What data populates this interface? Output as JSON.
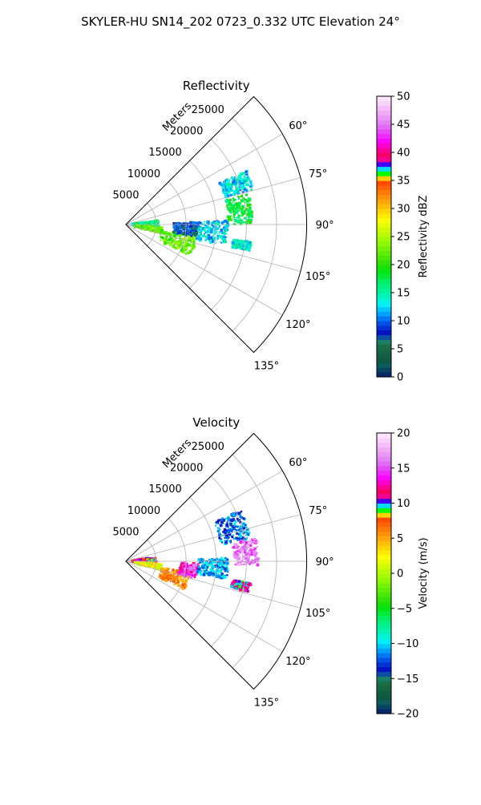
{
  "title": "SKYLER-HU  SN14_202  0723_0.332 UTC Elevation 24°",
  "chart_data": [
    {
      "type": "heatmap",
      "title": "Reflectivity",
      "projection": "polar-sector",
      "theta_range_deg": [
        45,
        135
      ],
      "theta_ticks": [
        60,
        75,
        90,
        105,
        120,
        135
      ],
      "theta_tick_labels": [
        "60°",
        "75°",
        "90°",
        "105°",
        "120°",
        "135°"
      ],
      "r_range": [
        0,
        30000
      ],
      "r_ticks": [
        5000,
        10000,
        15000,
        20000,
        25000
      ],
      "r_tick_labels": [
        "5000",
        "10000",
        "15000",
        "20000",
        "25000"
      ],
      "r_label": "Meters",
      "grid": true,
      "colorbar": {
        "label": "Reflectivity dBZ",
        "range": [
          0,
          50
        ],
        "ticks": [
          0,
          5,
          10,
          15,
          20,
          25,
          30,
          35,
          40,
          45,
          50
        ],
        "tick_labels": [
          "0",
          "5",
          "10",
          "15",
          "20",
          "25",
          "30",
          "35",
          "40",
          "45",
          "50"
        ]
      },
      "echo_regions": [
        {
          "r": [
            1000,
            5500
          ],
          "theta": [
            83,
            95
          ],
          "value": 16
        },
        {
          "r": [
            1500,
            6000
          ],
          "theta": [
            94,
            104
          ],
          "value": 22
        },
        {
          "r": [
            6000,
            12000
          ],
          "theta": [
            98,
            116
          ],
          "value": 22
        },
        {
          "r": [
            8000,
            12000
          ],
          "theta": [
            88,
            100
          ],
          "value": 8
        },
        {
          "r": [
            12000,
            17000
          ],
          "theta": [
            88,
            102
          ],
          "value": 13
        },
        {
          "r": [
            17000,
            22000
          ],
          "theta": [
            66,
            75
          ],
          "value": 13
        },
        {
          "r": [
            17000,
            21000
          ],
          "theta": [
            76,
            90
          ],
          "value": 18
        },
        {
          "r": [
            18000,
            21000
          ],
          "theta": [
            98,
            102
          ],
          "value": 14
        }
      ]
    },
    {
      "type": "heatmap",
      "title": "Velocity",
      "projection": "polar-sector",
      "theta_range_deg": [
        45,
        135
      ],
      "theta_ticks": [
        60,
        75,
        90,
        105,
        120,
        135
      ],
      "theta_tick_labels": [
        "60°",
        "75°",
        "90°",
        "105°",
        "120°",
        "135°"
      ],
      "r_range": [
        0,
        30000
      ],
      "r_ticks": [
        5000,
        10000,
        15000,
        20000,
        25000
      ],
      "r_tick_labels": [
        "5000",
        "10000",
        "15000",
        "20000",
        "25000"
      ],
      "r_label": "Meters",
      "grid": true,
      "colorbar": {
        "label": "Velocity (m/s)",
        "range": [
          -20,
          20
        ],
        "ticks": [
          -20,
          -15,
          -10,
          -5,
          0,
          5,
          10,
          15,
          20
        ],
        "tick_labels": [
          "−20",
          "−15",
          "−10",
          "−5",
          "0",
          "5",
          "10",
          "15",
          "20"
        ]
      },
      "echo_regions": [
        {
          "r": [
            1000,
            5000
          ],
          "theta": [
            82,
            92
          ],
          "value": 10
        },
        {
          "r": [
            1500,
            6000
          ],
          "theta": [
            94,
            104
          ],
          "value": 2
        },
        {
          "r": [
            6000,
            11000
          ],
          "theta": [
            100,
            116
          ],
          "value": 6
        },
        {
          "r": [
            9000,
            12000
          ],
          "theta": [
            92,
            104
          ],
          "value": 14
        },
        {
          "r": [
            12000,
            17000
          ],
          "theta": [
            88,
            100
          ],
          "value": -11
        },
        {
          "r": [
            16000,
            21000
          ],
          "theta": [
            66,
            80
          ],
          "value": -12
        },
        {
          "r": [
            18000,
            22000
          ],
          "theta": [
            80,
            92
          ],
          "value": 16
        },
        {
          "r": [
            18000,
            21000
          ],
          "theta": [
            100,
            104
          ],
          "value": 11
        }
      ]
    }
  ]
}
